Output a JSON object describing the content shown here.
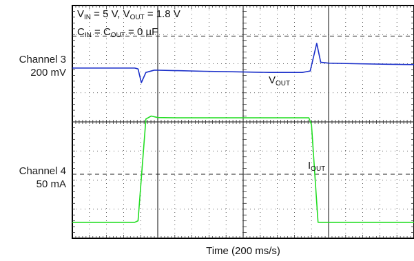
{
  "conditions": {
    "line1": {
      "v": "V",
      "v_in_sub": "IN",
      "mid": " = 5 V, V",
      "v_out_sub": "OUT",
      "end": " = 1.8 V"
    },
    "line2": {
      "c": "C",
      "c_in_sub": "IN",
      "mid": " = C",
      "c_out_sub": "OUT",
      "end": " = 0 µF"
    }
  },
  "channels": [
    {
      "name": "Channel 3",
      "scale": "200 mV"
    },
    {
      "name": "Channel 4",
      "scale": "50 mA"
    }
  ],
  "trace_labels": {
    "vout": {
      "main": "V",
      "sub": "OUT"
    },
    "iout": {
      "main": "I",
      "sub": "OUT"
    }
  },
  "chart_data": {
    "type": "line",
    "xlabel": "Time (200 ms/s)",
    "title": "",
    "grid": true,
    "x_divisions": 4,
    "y_divisions": 8,
    "colors": {
      "vout": "#1a2fc9",
      "iout": "#22dd22",
      "grid": "#333333"
    },
    "series": [
      {
        "name": "VOUT",
        "color": "#1a2fc9",
        "x": [
          0,
          0.95,
          1.0,
          1.05,
          1.12,
          1.25,
          1.6,
          2.0,
          2.5,
          3.0,
          3.5,
          3.62,
          3.72,
          3.78,
          3.9,
          4.3,
          4.8,
          5.2
        ],
        "y": [
          5.85,
          5.85,
          5.82,
          5.35,
          5.7,
          5.78,
          5.76,
          5.74,
          5.72,
          5.7,
          5.7,
          5.75,
          6.7,
          6.05,
          6.02,
          6.0,
          5.98,
          5.97
        ]
      },
      {
        "name": "IOUT",
        "color": "#22dd22",
        "x": [
          0,
          0.95,
          1.0,
          1.12,
          1.2,
          1.3,
          1.6,
          2.0,
          2.5,
          3.0,
          3.5,
          3.6,
          3.64,
          3.74,
          3.9,
          4.3,
          4.8,
          5.2
        ],
        "y": [
          0.55,
          0.55,
          0.6,
          4.1,
          4.2,
          4.15,
          4.14,
          4.14,
          4.14,
          4.14,
          4.14,
          4.14,
          3.9,
          0.55,
          0.55,
          0.55,
          0.55,
          0.55
        ]
      }
    ],
    "reference_levels": [
      5.85,
      1.1
    ]
  }
}
